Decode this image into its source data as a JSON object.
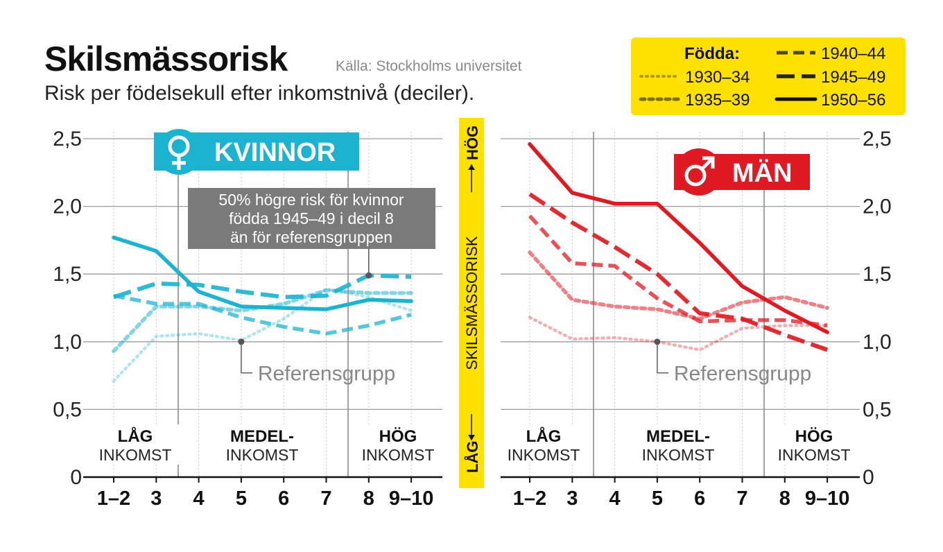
{
  "header": {
    "title": "Skilsmässorisk",
    "source": "Källa: Stockholms universitet",
    "subtitle": "Risk per födelsekull efter inkomstnivå (deciler)."
  },
  "legend": {
    "title": "Födda:",
    "items": [
      "1930–34",
      "1935–39",
      "1940–44",
      "1945–49",
      "1950–56"
    ]
  },
  "center_axis": {
    "low": "LÅG",
    "label": "SKILSMÄSSORISK",
    "high": "HÖG"
  },
  "income_groups": [
    {
      "bold": "LÅG",
      "regular": "INKOMST"
    },
    {
      "bold": "MEDEL-",
      "regular": "INKOMST"
    },
    {
      "bold": "HÖG",
      "regular": "INKOMST"
    }
  ],
  "colors": {
    "women": "#1cb3d0",
    "women_badge": "#18b0cf",
    "men": "#e01a22",
    "legend_bg": "#ffe100",
    "annotation_bg": "#7a7a7a",
    "grid": "#9e9e9e"
  },
  "chart_data": [
    {
      "type": "line",
      "panel": "KVINNOR",
      "icon": "female-symbol-icon",
      "categories": [
        "1–2",
        "3",
        "4",
        "5",
        "6",
        "7",
        "8",
        "9–10"
      ],
      "ylim": [
        0,
        2.5
      ],
      "yticks": [
        "0",
        "0,5",
        "1,0",
        "1,5",
        "2,0",
        "2,5"
      ],
      "y_axis_side": "left",
      "series": [
        {
          "name": "1930–34",
          "values": [
            0.71,
            1.04,
            1.06,
            1.01,
            1.17,
            1.39,
            1.33,
            1.23
          ]
        },
        {
          "name": "1935–39",
          "values": [
            0.93,
            1.26,
            1.26,
            1.23,
            1.28,
            1.38,
            1.36,
            1.36
          ]
        },
        {
          "name": "1940–44",
          "values": [
            1.34,
            1.28,
            1.28,
            1.18,
            1.11,
            1.06,
            1.12,
            1.2
          ]
        },
        {
          "name": "1945–49",
          "values": [
            1.33,
            1.43,
            1.42,
            1.37,
            1.33,
            1.34,
            1.49,
            1.48
          ]
        },
        {
          "name": "1950–56",
          "values": [
            1.77,
            1.67,
            1.37,
            1.26,
            1.25,
            1.24,
            1.31,
            1.3
          ]
        }
      ],
      "annotations": [
        {
          "text": [
            "50% högre risk för kvinnor",
            "födda 1945–49 i decil 8",
            "än för referensgruppen"
          ],
          "x": "8",
          "y": 1.49
        },
        {
          "text": [
            "Referensgrupp"
          ],
          "x": "5",
          "y": 1.0
        }
      ]
    },
    {
      "type": "line",
      "panel": "MÄN",
      "icon": "male-symbol-icon",
      "categories": [
        "1–2",
        "3",
        "4",
        "5",
        "6",
        "7",
        "8",
        "9–10"
      ],
      "ylim": [
        0,
        2.5
      ],
      "yticks": [
        "0",
        "0,5",
        "1,0",
        "1,5",
        "2,0",
        "2,5"
      ],
      "y_axis_side": "right",
      "series": [
        {
          "name": "1930–34",
          "values": [
            1.18,
            1.02,
            1.03,
            1.0,
            0.94,
            1.1,
            1.12,
            1.12
          ]
        },
        {
          "name": "1935–39",
          "values": [
            1.66,
            1.31,
            1.26,
            1.24,
            1.17,
            1.29,
            1.33,
            1.25
          ]
        },
        {
          "name": "1940–44",
          "values": [
            1.93,
            1.58,
            1.56,
            1.32,
            1.15,
            1.16,
            1.16,
            1.12
          ]
        },
        {
          "name": "1945–49",
          "values": [
            2.09,
            1.88,
            1.7,
            1.5,
            1.21,
            1.17,
            1.05,
            0.94
          ]
        },
        {
          "name": "1950–56",
          "values": [
            2.46,
            2.1,
            2.02,
            2.02,
            1.73,
            1.41,
            1.23,
            1.07
          ]
        }
      ],
      "annotations": [
        {
          "text": [
            "Referensgrupp"
          ],
          "x": "5",
          "y": 1.0
        }
      ]
    }
  ]
}
